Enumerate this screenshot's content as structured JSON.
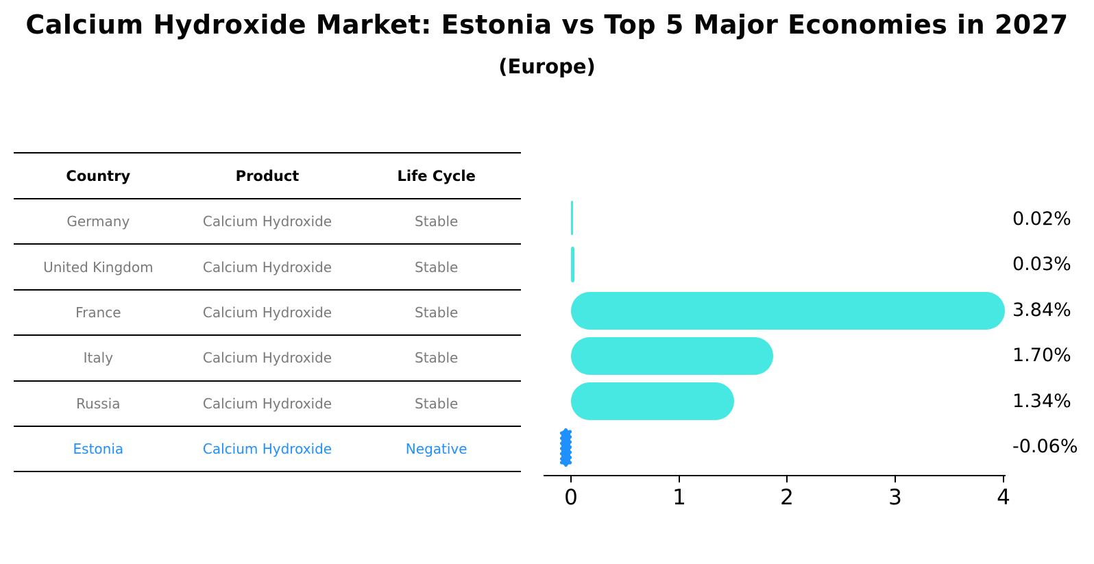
{
  "title": "Calcium Hydroxide Market: Estonia vs Top 5 Major Economies in 2027",
  "subtitle": "(Europe)",
  "table": {
    "headers": [
      "Country",
      "Product",
      "Life Cycle"
    ],
    "rows": [
      {
        "country": "Germany",
        "product": "Calcium Hydroxide",
        "life_cycle": "Stable",
        "highlight": false
      },
      {
        "country": "United Kingdom",
        "product": "Calcium Hydroxide",
        "life_cycle": "Stable",
        "highlight": false
      },
      {
        "country": "France",
        "product": "Calcium Hydroxide",
        "life_cycle": "Stable",
        "highlight": false
      },
      {
        "country": "Italy",
        "product": "Calcium Hydroxide",
        "life_cycle": "Stable",
        "highlight": false
      },
      {
        "country": "Russia",
        "product": "Calcium Hydroxide",
        "life_cycle": "Stable",
        "highlight": false
      },
      {
        "country": "Estonia",
        "product": "Calcium Hydroxide",
        "life_cycle": "Negative",
        "highlight": true
      }
    ]
  },
  "chart_data": {
    "type": "bar",
    "orientation": "horizontal",
    "title": "Calcium Hydroxide Market: Estonia vs Top 5 Major Economies in 2027 (Europe)",
    "categories": [
      "Germany",
      "United Kingdom",
      "France",
      "Italy",
      "Russia",
      "Estonia"
    ],
    "values": [
      0.02,
      0.03,
      3.84,
      1.7,
      1.34,
      -0.06
    ],
    "value_labels": [
      "0.02%",
      "0.03%",
      "3.84%",
      "1.70%",
      "1.34%",
      "-0.06%"
    ],
    "unit": "percent",
    "x_ticks": [
      "0",
      "1",
      "2",
      "3",
      "4"
    ],
    "xlim": [
      0,
      4
    ],
    "grid": false,
    "legend": false,
    "bar_color": "#48E8E2",
    "highlight_color": "#1E90FF",
    "highlight_index": 5
  },
  "colors": {
    "bar": "#48E8E2",
    "highlight": "#1E90FF",
    "table_text": "#7a7a7a",
    "header_text": "#000000",
    "axis": "#000000"
  }
}
